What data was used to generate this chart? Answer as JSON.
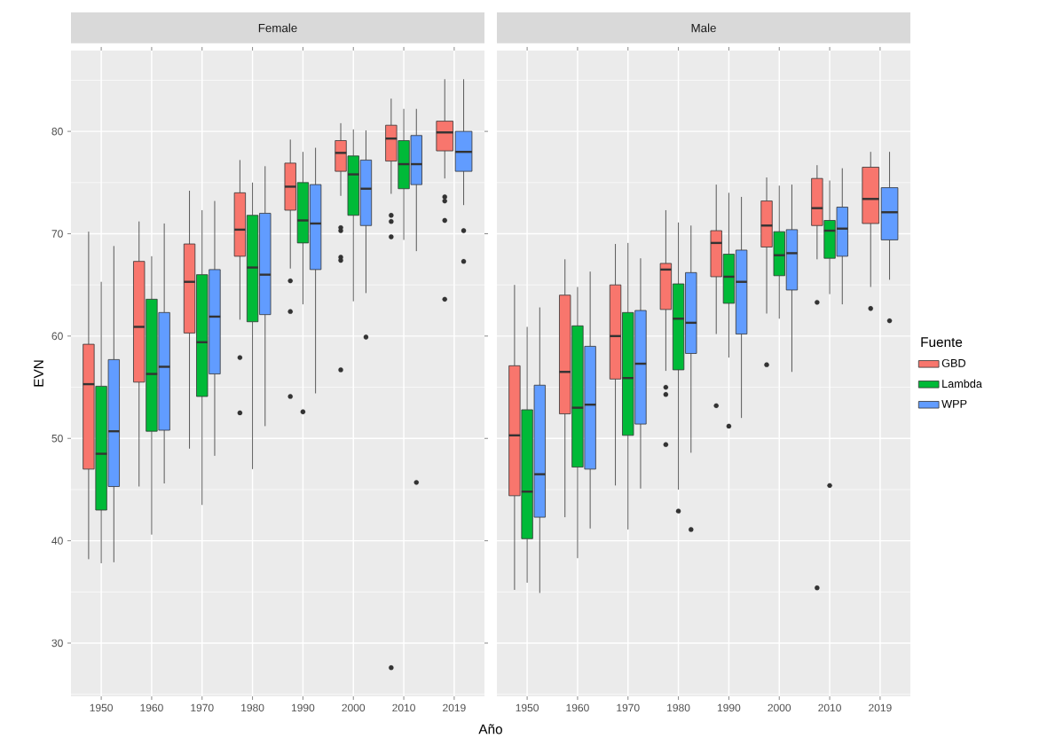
{
  "chart_data": [
    {
      "type": "box",
      "title": "Female",
      "ylabel": "EVN",
      "xlabel": "Año",
      "categories": [
        "1950",
        "1960",
        "1970",
        "1980",
        "1990",
        "2000",
        "2010",
        "2019"
      ],
      "ylim": [
        24.8,
        87.9
      ],
      "yticks": [
        30,
        40,
        50,
        60,
        70,
        80
      ],
      "grid": true,
      "series": [
        {
          "color": "#F8766D",
          "boxes": [
            {
              "low": 38.2,
              "q1": 47,
              "median": 55.3,
              "q3": 59.2,
              "high": 70.2
            },
            {
              "low": 45.3,
              "q1": 55.5,
              "median": 60.9,
              "q3": 67.3,
              "high": 71.2
            },
            {
              "low": 49,
              "q1": 60.3,
              "median": 65.3,
              "q3": 69,
              "high": 74.2
            },
            {
              "low": 61.6,
              "q1": 67.8,
              "median": 70.4,
              "q3": 74,
              "high": 77.2,
              "outliers": [
                57.9,
                52.5
              ]
            },
            {
              "low": 66.6,
              "q1": 72.3,
              "median": 74.6,
              "q3": 76.9,
              "high": 79.2,
              "outliers": [
                65.4,
                62.4,
                54.1
              ]
            },
            {
              "low": 73.7,
              "q1": 76.1,
              "median": 77.9,
              "q3": 79.1,
              "high": 80.8,
              "outliers": [
                70.6,
                70.3,
                67.7,
                67.4,
                56.7
              ]
            },
            {
              "low": 73.9,
              "q1": 77.1,
              "median": 79.3,
              "q3": 80.6,
              "high": 83.2,
              "outliers": [
                71.8,
                71.2,
                69.7,
                27.6
              ]
            },
            {
              "low": 75.4,
              "q1": 78.1,
              "median": 79.9,
              "q3": 81,
              "high": 85.1,
              "outliers": [
                73.6,
                73.2,
                71.3,
                63.6
              ]
            }
          ]
        },
        {
          "color": "#00BA38",
          "boxes": [
            {
              "low": 37.8,
              "q1": 43,
              "median": 48.5,
              "q3": 55.1,
              "high": 65.3
            },
            {
              "low": 40.6,
              "q1": 50.7,
              "median": 56.3,
              "q3": 63.6,
              "high": 67.8
            },
            {
              "low": 43.5,
              "q1": 54.1,
              "median": 59.4,
              "q3": 66,
              "high": 72.3
            },
            {
              "low": 47,
              "q1": 61.4,
              "median": 66.7,
              "q3": 71.8,
              "high": 75
            },
            {
              "low": 63.1,
              "q1": 69.1,
              "median": 71.3,
              "q3": 75,
              "high": 78,
              "outliers": [
                52.6
              ]
            },
            {
              "low": 63.4,
              "q1": 71.8,
              "median": 75.8,
              "q3": 77.6,
              "high": 80.2
            },
            {
              "low": 69.4,
              "q1": 74.4,
              "median": 76.8,
              "q3": 79.1,
              "high": 82.2
            },
            null
          ]
        },
        {
          "color": "#619CFF",
          "boxes": [
            {
              "low": 37.9,
              "q1": 45.3,
              "median": 50.7,
              "q3": 57.7,
              "high": 68.8
            },
            {
              "low": 45.6,
              "q1": 50.8,
              "median": 57,
              "q3": 62.3,
              "high": 71
            },
            {
              "low": 48.3,
              "q1": 56.3,
              "median": 61.9,
              "q3": 66.5,
              "high": 73.2
            },
            {
              "low": 51.2,
              "q1": 62.1,
              "median": 66,
              "q3": 72,
              "high": 76.6
            },
            {
              "low": 54.4,
              "q1": 66.5,
              "median": 71,
              "q3": 74.8,
              "high": 78.4
            },
            {
              "low": 64.2,
              "q1": 70.8,
              "median": 74.4,
              "q3": 77.2,
              "high": 80.1,
              "outliers": [
                59.9
              ]
            },
            {
              "low": 68.3,
              "q1": 74.8,
              "median": 76.8,
              "q3": 79.6,
              "high": 82.2,
              "outliers": [
                45.7
              ]
            },
            {
              "low": 72.8,
              "q1": 76.1,
              "median": 78,
              "q3": 80,
              "high": 85.1,
              "outliers": [
                70.3,
                67.3
              ]
            }
          ]
        }
      ]
    },
    {
      "type": "box",
      "title": "Male",
      "legend_title": "Fuente",
      "legend": "right",
      "tick_labels": "x",
      "categories": [
        "1950",
        "1960",
        "1970",
        "1980",
        "1990",
        "2000",
        "2010",
        "2019"
      ],
      "ylim": [
        24.8,
        87.9
      ],
      "yticks": [
        30,
        40,
        50,
        60,
        70,
        80
      ],
      "grid": true,
      "series": [
        {
          "name": "GBD",
          "color": "#F8766D",
          "boxes": [
            {
              "low": 35.2,
              "q1": 44.4,
              "median": 50.3,
              "q3": 57.1,
              "high": 65
            },
            {
              "low": 42.3,
              "q1": 52.4,
              "median": 56.5,
              "q3": 64,
              "high": 67.5
            },
            {
              "low": 45.4,
              "q1": 55.8,
              "median": 60,
              "q3": 65,
              "high": 69
            },
            {
              "low": 56.6,
              "q1": 62.6,
              "median": 66.5,
              "q3": 67.1,
              "high": 72.3,
              "outliers": [
                55,
                54.3,
                49.4
              ]
            },
            {
              "low": 60.2,
              "q1": 65.8,
              "median": 69.1,
              "q3": 70.3,
              "high": 74.8,
              "outliers": [
                53.2
              ]
            },
            {
              "low": 62.2,
              "q1": 68.7,
              "median": 70.8,
              "q3": 73.2,
              "high": 75.5,
              "outliers": [
                57.2
              ]
            },
            {
              "low": 67.5,
              "q1": 70.8,
              "median": 72.5,
              "q3": 75.4,
              "high": 76.7,
              "outliers": [
                63.3,
                35.4
              ]
            },
            {
              "low": 64.8,
              "q1": 71,
              "median": 73.4,
              "q3": 76.5,
              "high": 78,
              "outliers": [
                62.7
              ]
            }
          ]
        },
        {
          "name": "Lambda",
          "color": "#00BA38",
          "boxes": [
            {
              "low": 35.9,
              "q1": 40.2,
              "median": 44.8,
              "q3": 52.8,
              "high": 60.9
            },
            {
              "low": 38.3,
              "q1": 47.2,
              "median": 53,
              "q3": 61,
              "high": 64.8
            },
            {
              "low": 41.1,
              "q1": 50.3,
              "median": 55.9,
              "q3": 62.3,
              "high": 69.1
            },
            {
              "low": 45,
              "q1": 56.7,
              "median": 61.7,
              "q3": 65.1,
              "high": 71.1,
              "outliers": [
                42.9
              ]
            },
            {
              "low": 57.9,
              "q1": 63.2,
              "median": 65.8,
              "q3": 68,
              "high": 74,
              "outliers": [
                51.2
              ]
            },
            {
              "low": 61.7,
              "q1": 65.9,
              "median": 67.9,
              "q3": 70.2,
              "high": 74.7
            },
            {
              "low": 64.1,
              "q1": 67.6,
              "median": 70.3,
              "q3": 71.3,
              "high": 75.2,
              "outliers": [
                45.4
              ]
            },
            null
          ]
        },
        {
          "name": "WPP",
          "color": "#619CFF",
          "boxes": [
            {
              "low": 34.9,
              "q1": 42.3,
              "median": 46.5,
              "q3": 55.2,
              "high": 62.8
            },
            {
              "low": 41.2,
              "q1": 47,
              "median": 53.3,
              "q3": 59,
              "high": 66.3
            },
            {
              "low": 45.1,
              "q1": 51.4,
              "median": 57.3,
              "q3": 62.5,
              "high": 67.6
            },
            {
              "low": 48.6,
              "q1": 58.3,
              "median": 61.3,
              "q3": 66.2,
              "high": 70.8,
              "outliers": [
                41.1
              ]
            },
            {
              "low": 52,
              "q1": 60.2,
              "median": 65.3,
              "q3": 68.4,
              "high": 73.6
            },
            {
              "low": 56.5,
              "q1": 64.5,
              "median": 68.1,
              "q3": 70.4,
              "high": 74.8
            },
            {
              "low": 63.1,
              "q1": 67.8,
              "median": 70.5,
              "q3": 72.6,
              "high": 76.4
            },
            {
              "low": 65.5,
              "q1": 69.4,
              "median": 72.1,
              "q3": 74.5,
              "high": 78,
              "outliers": [
                61.5
              ]
            }
          ]
        }
      ]
    }
  ]
}
